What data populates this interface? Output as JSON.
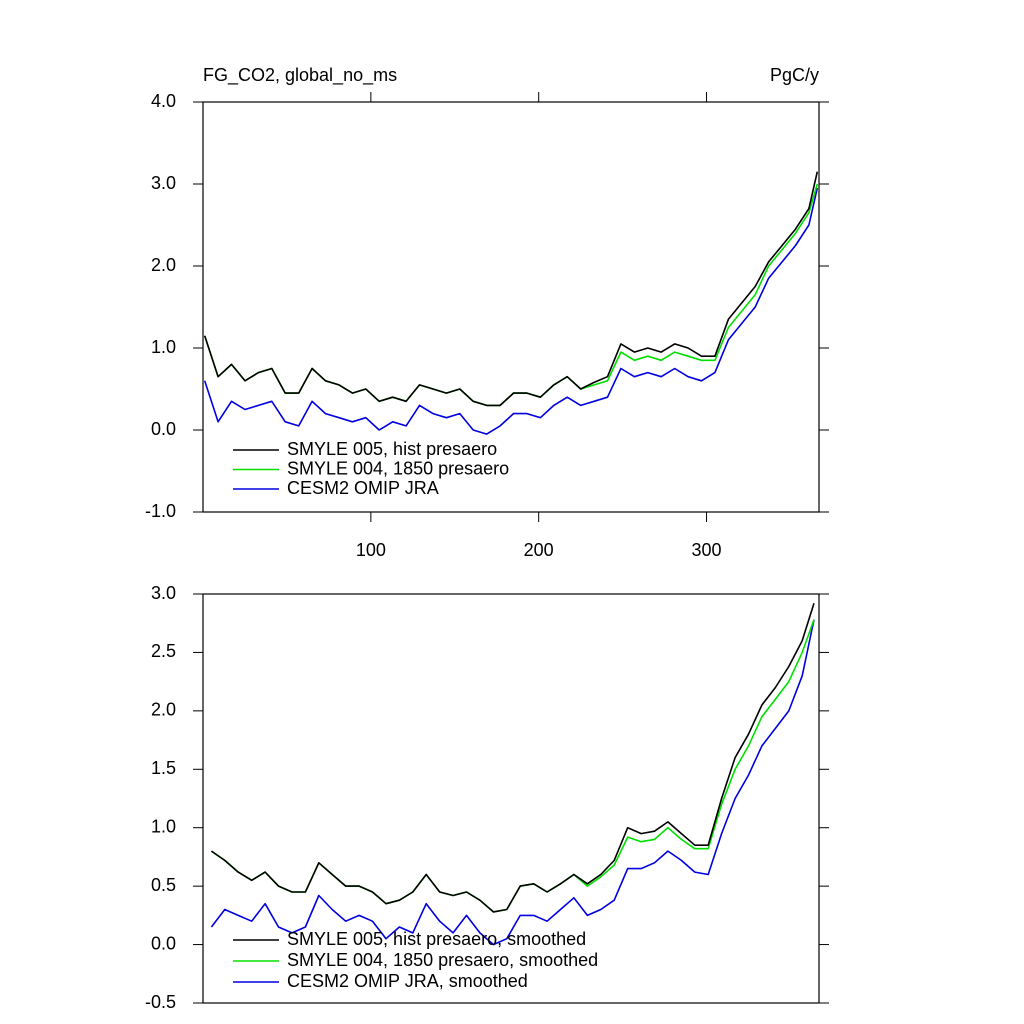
{
  "chart_data": [
    {
      "type": "line",
      "title": "FG_CO2, global_no_ms",
      "units": "PgC/y",
      "x": [
        1,
        9,
        17,
        25,
        33,
        41,
        49,
        57,
        65,
        73,
        81,
        89,
        97,
        105,
        113,
        121,
        129,
        137,
        145,
        153,
        161,
        169,
        177,
        185,
        193,
        201,
        209,
        217,
        225,
        233,
        241,
        249,
        257,
        265,
        273,
        281,
        289,
        297,
        305,
        313,
        321,
        329,
        337,
        345,
        353,
        361,
        366
      ],
      "series": [
        {
          "name": "SMYLE 005, hist presaero",
          "color": "#000000",
          "values": [
            1.15,
            0.65,
            0.8,
            0.6,
            0.7,
            0.75,
            0.45,
            0.45,
            0.75,
            0.6,
            0.55,
            0.45,
            0.5,
            0.35,
            0.4,
            0.35,
            0.55,
            0.5,
            0.45,
            0.5,
            0.35,
            0.3,
            0.3,
            0.45,
            0.45,
            0.4,
            0.55,
            0.65,
            0.5,
            0.58,
            0.65,
            1.05,
            0.95,
            1.0,
            0.95,
            1.05,
            1.0,
            0.9,
            0.9,
            1.35,
            1.55,
            1.75,
            2.05,
            2.25,
            2.45,
            2.7,
            3.15
          ]
        },
        {
          "name": "SMYLE 004, 1850 presaero",
          "color": "#00e000",
          "values": [
            1.15,
            0.65,
            0.8,
            0.6,
            0.7,
            0.75,
            0.45,
            0.45,
            0.75,
            0.6,
            0.55,
            0.45,
            0.5,
            0.35,
            0.4,
            0.35,
            0.55,
            0.5,
            0.45,
            0.5,
            0.35,
            0.3,
            0.3,
            0.45,
            0.45,
            0.4,
            0.55,
            0.65,
            0.5,
            0.55,
            0.6,
            0.95,
            0.85,
            0.9,
            0.85,
            0.95,
            0.9,
            0.85,
            0.85,
            1.25,
            1.45,
            1.65,
            2.0,
            2.2,
            2.4,
            2.65,
            3.0
          ]
        },
        {
          "name": "CESM2 OMIP JRA",
          "color": "#0000e0",
          "values": [
            0.6,
            0.1,
            0.35,
            0.25,
            0.3,
            0.35,
            0.1,
            0.05,
            0.35,
            0.2,
            0.15,
            0.1,
            0.15,
            0.0,
            0.1,
            0.05,
            0.3,
            0.2,
            0.15,
            0.2,
            0.0,
            -0.05,
            0.05,
            0.2,
            0.2,
            0.15,
            0.3,
            0.4,
            0.3,
            0.35,
            0.4,
            0.75,
            0.65,
            0.7,
            0.65,
            0.75,
            0.65,
            0.6,
            0.7,
            1.1,
            1.3,
            1.5,
            1.85,
            2.05,
            2.25,
            2.5,
            2.95
          ]
        }
      ],
      "xlim": [
        0,
        367
      ],
      "xticks": [
        100,
        200,
        300
      ],
      "ylim": [
        -1,
        4
      ],
      "yticks": [
        {
          "value": -1,
          "label": "-1.0"
        },
        {
          "value": 0,
          "label": "0.0"
        },
        {
          "value": 1,
          "label": "1.0"
        },
        {
          "value": 2,
          "label": "2.0"
        },
        {
          "value": 3,
          "label": "3.0"
        },
        {
          "value": 4,
          "label": "4.0"
        }
      ],
      "legend": "lower-left"
    },
    {
      "type": "line",
      "x": [
        5,
        13,
        21,
        29,
        37,
        45,
        53,
        61,
        69,
        77,
        85,
        93,
        101,
        109,
        117,
        125,
        133,
        141,
        149,
        157,
        165,
        173,
        181,
        189,
        197,
        205,
        213,
        221,
        229,
        237,
        245,
        253,
        261,
        269,
        277,
        285,
        293,
        301,
        309,
        317,
        325,
        333,
        341,
        349,
        357,
        364
      ],
      "series": [
        {
          "name": "SMYLE 005, hist presaero, smoothed",
          "color": "#000000",
          "values": [
            0.8,
            0.72,
            0.62,
            0.55,
            0.62,
            0.5,
            0.45,
            0.45,
            0.7,
            0.6,
            0.5,
            0.5,
            0.45,
            0.35,
            0.38,
            0.45,
            0.6,
            0.45,
            0.42,
            0.45,
            0.38,
            0.28,
            0.3,
            0.5,
            0.52,
            0.45,
            0.52,
            0.6,
            0.52,
            0.6,
            0.72,
            1.0,
            0.95,
            0.97,
            1.05,
            0.95,
            0.85,
            0.85,
            1.25,
            1.6,
            1.8,
            2.05,
            2.2,
            2.38,
            2.6,
            2.92
          ]
        },
        {
          "name": "SMYLE 004, 1850 presaero, smoothed",
          "color": "#00e000",
          "values": [
            0.8,
            0.72,
            0.62,
            0.55,
            0.62,
            0.5,
            0.45,
            0.45,
            0.7,
            0.6,
            0.5,
            0.5,
            0.45,
            0.35,
            0.38,
            0.45,
            0.6,
            0.45,
            0.42,
            0.45,
            0.38,
            0.28,
            0.3,
            0.5,
            0.52,
            0.45,
            0.52,
            0.6,
            0.5,
            0.58,
            0.68,
            0.92,
            0.88,
            0.9,
            1.0,
            0.9,
            0.82,
            0.82,
            1.2,
            1.5,
            1.7,
            1.95,
            2.1,
            2.25,
            2.5,
            2.78
          ]
        },
        {
          "name": "CESM2 OMIP JRA, smoothed",
          "color": "#0000e0",
          "values": [
            0.15,
            0.3,
            0.25,
            0.2,
            0.35,
            0.15,
            0.1,
            0.15,
            0.42,
            0.3,
            0.2,
            0.25,
            0.2,
            0.05,
            0.15,
            0.1,
            0.35,
            0.2,
            0.1,
            0.25,
            0.1,
            0.0,
            0.05,
            0.25,
            0.25,
            0.2,
            0.3,
            0.4,
            0.25,
            0.3,
            0.38,
            0.65,
            0.65,
            0.7,
            0.8,
            0.72,
            0.62,
            0.6,
            0.95,
            1.25,
            1.45,
            1.7,
            1.85,
            2.0,
            2.3,
            2.78
          ]
        }
      ],
      "xlim": [
        0,
        367
      ],
      "ylim": [
        -0.5,
        3
      ],
      "yticks": [
        {
          "value": -0.5,
          "label": "-0.5"
        },
        {
          "value": 0,
          "label": "0.0"
        },
        {
          "value": 0.5,
          "label": "0.5"
        },
        {
          "value": 1,
          "label": "1.0"
        },
        {
          "value": 1.5,
          "label": "1.5"
        },
        {
          "value": 2,
          "label": "2.0"
        },
        {
          "value": 2.5,
          "label": "2.5"
        },
        {
          "value": 3,
          "label": "3.0"
        }
      ],
      "legend": "lower-left"
    }
  ]
}
